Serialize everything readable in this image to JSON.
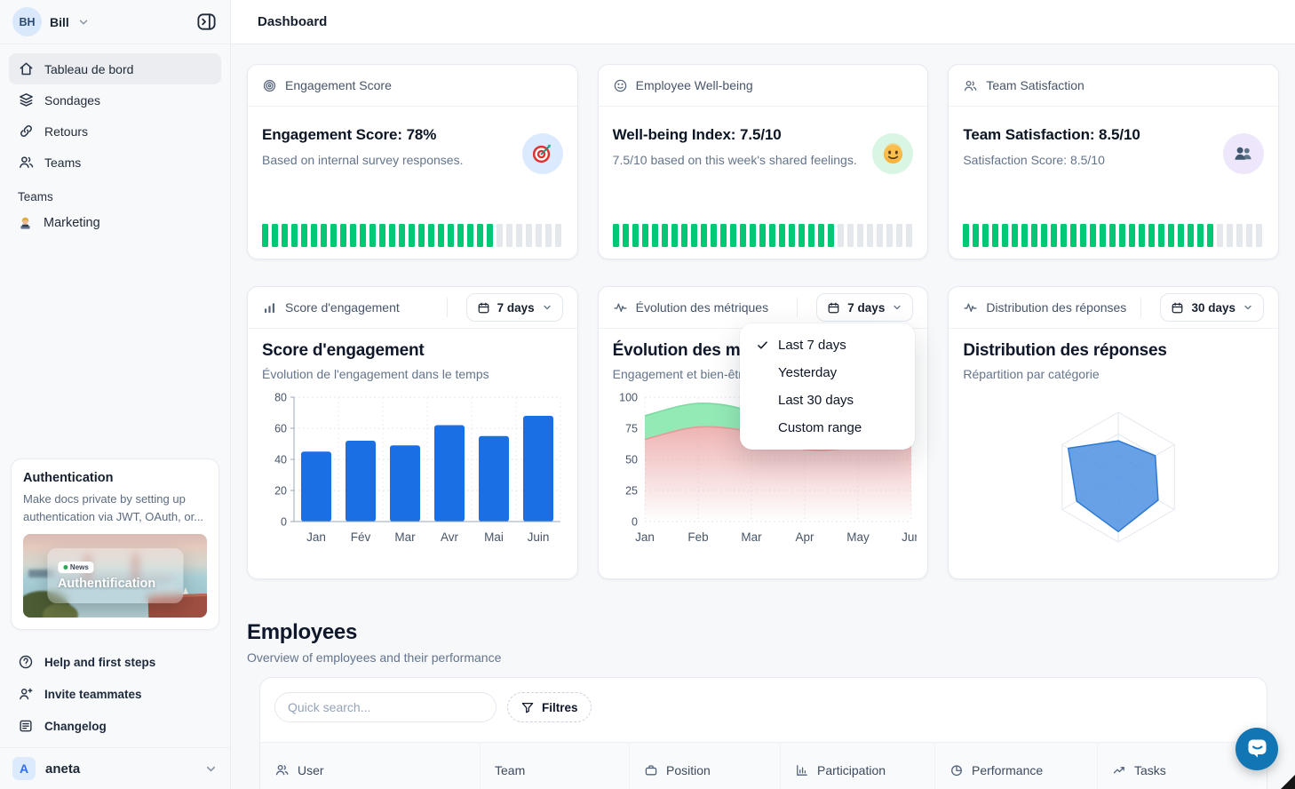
{
  "sidebar": {
    "user": {
      "initials": "BH",
      "name": "Bill"
    },
    "nav": [
      {
        "label": "Tableau de bord",
        "icon": "home-icon",
        "active": true
      },
      {
        "label": "Sondages",
        "icon": "layers-icon"
      },
      {
        "label": "Retours",
        "icon": "link-icon"
      },
      {
        "label": "Teams",
        "icon": "users-icon"
      }
    ],
    "teams_section": {
      "label": "Teams",
      "items": [
        {
          "label": "Marketing",
          "icon": "technologist-emoji"
        }
      ]
    },
    "promo": {
      "title": "Authentication",
      "description": "Make docs private by setting up authentication via JWT, OAuth, or...",
      "badge": "News",
      "image_title": "Authentification"
    },
    "footer_nav": [
      {
        "label": "Help and first steps",
        "icon": "help-icon"
      },
      {
        "label": "Invite teammates",
        "icon": "user-plus-icon"
      },
      {
        "label": "Changelog",
        "icon": "changelog-icon"
      }
    ],
    "workspace": {
      "initial": "A",
      "name": "aneta"
    }
  },
  "topbar": {
    "title": "Dashboard"
  },
  "stat_cards": [
    {
      "header": "Engagement Score",
      "header_icon": "target-icon",
      "title": "Engagement Score: 78%",
      "subtitle": "Based on internal survey responses.",
      "emoji": "target-emoji",
      "emoji_bg": "#dbeafe",
      "progress_pct": 78
    },
    {
      "header": "Employee Well-being",
      "header_icon": "smile-icon",
      "title": "Well-being Index: 7.5/10",
      "subtitle": "7.5/10 based on this week's shared feelings.",
      "emoji": "smile-emoji",
      "emoji_bg": "#d9f6e4",
      "progress_pct": 75
    },
    {
      "header": "Team Satisfaction",
      "header_icon": "users-icon",
      "title": "Team Satisfaction: 8.5/10",
      "subtitle": "Satisfaction Score: 8.5/10",
      "emoji": "busts-emoji",
      "emoji_bg": "#eee6fa",
      "progress_pct": 85
    }
  ],
  "chart_cards": [
    {
      "header": "Score d'engagement",
      "header_icon": "mini-bar-icon",
      "range_label": "7 days"
    },
    {
      "header": "Évolution des métriques",
      "header_icon": "activity-icon",
      "range_label": "7 days"
    },
    {
      "header": "Distribution des réponses",
      "header_icon": "activity-icon",
      "range_label": "30 days"
    }
  ],
  "range_menu": {
    "items": [
      {
        "label": "Last 7 days",
        "checked": true
      },
      {
        "label": "Yesterday",
        "checked": false
      },
      {
        "label": "Last 30 days",
        "checked": false
      },
      {
        "label": "Custom range",
        "checked": false
      }
    ]
  },
  "chart_data": [
    {
      "type": "bar",
      "title": "Score d'engagement",
      "subtitle": "Évolution de l'engagement dans le temps",
      "categories": [
        "Jan",
        "Fév",
        "Mar",
        "Avr",
        "Mai",
        "Juin"
      ],
      "values": [
        45,
        52,
        49,
        62,
        55,
        68
      ],
      "ylim": [
        0,
        80
      ],
      "yticks": [
        0,
        20,
        40,
        60,
        80
      ],
      "bar_color": "#1b6fe5",
      "grid": true,
      "legend": "none"
    },
    {
      "type": "area",
      "title": "Évolution des métriques",
      "subtitle": "Engagement et bien-être",
      "categories": [
        "Jan",
        "Feb",
        "Mar",
        "Apr",
        "May",
        "Jun"
      ],
      "series": [
        {
          "name": "Engagement",
          "values": [
            85,
            95,
            88,
            63,
            66,
            80
          ],
          "color": "#8de9b1",
          "line_color": "#79dba2"
        },
        {
          "name": "Bien-être",
          "values": [
            66,
            76,
            72,
            58,
            60,
            68
          ],
          "color": "#eba6a6",
          "line_color": "#e59a9a"
        }
      ],
      "ylim": [
        0,
        100
      ],
      "yticks": [
        0,
        25,
        50,
        75,
        100
      ],
      "grid": true,
      "legend": "none"
    },
    {
      "type": "radar",
      "title": "Distribution des réponses",
      "subtitle": "Répartition par catégorie",
      "axes": 6,
      "max": 100,
      "values": [
        56,
        66,
        71,
        84,
        74,
        89
      ],
      "fill": "#4f90e3",
      "stroke": "#2e7ad1",
      "grid_levels": 3
    }
  ],
  "employees": {
    "title": "Employees",
    "subtitle": "Overview of employees and their performance",
    "search_placeholder": "Quick search...",
    "filters_label": "Filtres",
    "columns": [
      {
        "label": "User",
        "icon": "users-icon"
      },
      {
        "label": "Team",
        "icon": ""
      },
      {
        "label": "Position",
        "icon": "briefcase-icon"
      },
      {
        "label": "Participation",
        "icon": "bar-chart-icon"
      },
      {
        "label": "Performance",
        "icon": "pie-chart-icon"
      },
      {
        "label": "Tasks",
        "icon": "trend-up-icon"
      }
    ]
  },
  "colors": {
    "progress_green": "#00c875",
    "progress_gray": "#e4e7eb",
    "bar_blue": "#1b6fe5",
    "radar_fill": "#4f90e3",
    "radar_stroke": "#2e7ad1",
    "area_green": "#8de9b1",
    "area_red": "#eba6a6",
    "chat_blue": "#1376b4"
  }
}
